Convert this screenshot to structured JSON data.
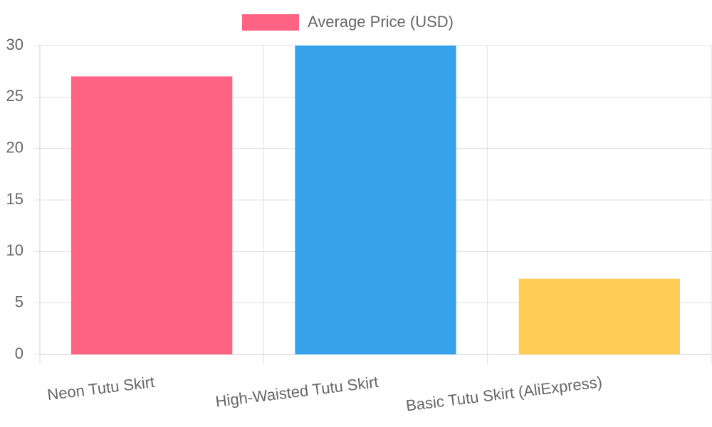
{
  "chart_data": {
    "type": "bar",
    "categories": [
      "Neon Tutu Skirt",
      "High-Waisted Tutu Skirt",
      "Basic Tutu Skirt (AliExpress)"
    ],
    "series": [
      {
        "name": "Average Price (USD)",
        "colors": [
          "#ff6384",
          "#36a2eb",
          "#ffcd56"
        ],
        "values": [
          27,
          30,
          7.35
        ]
      }
    ],
    "ylim": [
      0,
      30
    ],
    "yticks": [
      0,
      5,
      10,
      15,
      20,
      25,
      30
    ],
    "grid": true,
    "legend": "top"
  }
}
